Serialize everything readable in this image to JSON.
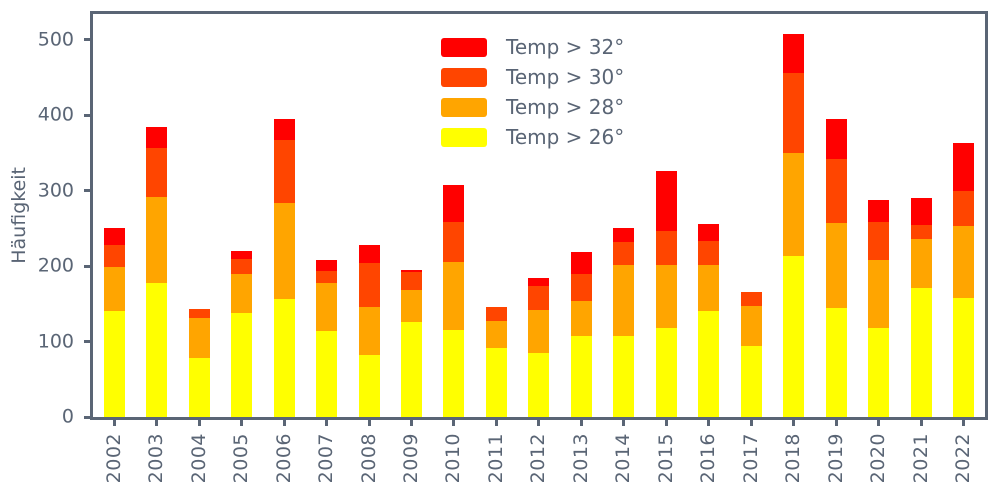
{
  "figure": {
    "ylabel": "Häufigkeit",
    "background": "#ffffff",
    "axis_color": "#5a6575"
  },
  "chart_data": {
    "type": "bar",
    "stacked": true,
    "title": "",
    "xlabel": "",
    "ylabel": "Häufigkeit",
    "grid": false,
    "legend_position": "upper center, no frame",
    "x_tick_rotation": 90,
    "categories": [
      "2002",
      "2003",
      "2004",
      "2005",
      "2006",
      "2007",
      "2008",
      "2009",
      "2010",
      "2011",
      "2012",
      "2013",
      "2014",
      "2015",
      "2016",
      "2017",
      "2018",
      "2019",
      "2020",
      "2021",
      "2022"
    ],
    "series": [
      {
        "name": "Temp > 26°",
        "color": "#ffff00",
        "values": [
          141,
          177,
          78,
          138,
          157,
          114,
          82,
          126,
          115,
          92,
          85,
          107,
          107,
          118,
          141,
          94,
          213,
          144,
          118,
          171,
          158
        ]
      },
      {
        "name": "Temp > 28°",
        "color": "#ffa500",
        "values": [
          58,
          115,
          53,
          52,
          126,
          63,
          64,
          42,
          91,
          35,
          57,
          47,
          95,
          84,
          60,
          53,
          137,
          113,
          90,
          65,
          95
        ]
      },
      {
        "name": "Temp > 30°",
        "color": "#ff4500",
        "values": [
          29,
          64,
          12,
          20,
          84,
          17,
          58,
          24,
          52,
          19,
          31,
          36,
          30,
          44,
          32,
          19,
          106,
          85,
          51,
          19,
          46
        ]
      },
      {
        "name": "Temp > 32°",
        "color": "#ff0000",
        "values": [
          22,
          28,
          0,
          10,
          28,
          14,
          24,
          3,
          49,
          0,
          11,
          29,
          18,
          80,
          23,
          0,
          51,
          53,
          28,
          35,
          64
        ]
      }
    ],
    "totals": [
      250,
      384,
      143,
      220,
      395,
      208,
      228,
      195,
      307,
      146,
      184,
      219,
      250,
      326,
      256,
      166,
      507,
      395,
      287,
      290,
      363
    ],
    "legend": {
      "entries": [
        {
          "label": "Temp > 32°",
          "color": "#ff0000"
        },
        {
          "label": "Temp > 30°",
          "color": "#ff4500"
        },
        {
          "label": "Temp > 28°",
          "color": "#ffa500"
        },
        {
          "label": "Temp > 26°",
          "color": "#ffff00"
        }
      ]
    },
    "yticks": [
      0,
      100,
      200,
      300,
      400,
      500
    ],
    "ylim": [
      0,
      534
    ]
  }
}
